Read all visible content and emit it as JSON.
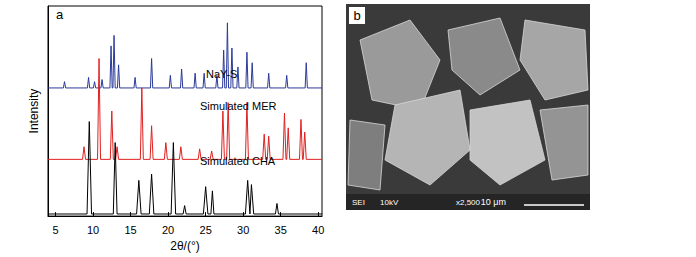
{
  "chart_data": {
    "type": "line",
    "title": "a",
    "xlabel": "2θ/(°)",
    "ylabel": "Intensity",
    "xlim": [
      4,
      40.5
    ],
    "xticks": [
      5,
      10,
      15,
      20,
      25,
      30,
      35,
      40
    ],
    "ylim": [
      0,
      100
    ],
    "tick_labels": "x",
    "grid": false,
    "series": [
      {
        "name": "NaY-S",
        "color": "#2b3a9a",
        "x": [
          4,
          6.05,
          6.2,
          6.35,
          9.25,
          9.4,
          9.55,
          10.05,
          10.2,
          10.35,
          11.05,
          11.2,
          11.35,
          12.25,
          12.4,
          12.55,
          12.65,
          12.8,
          12.95,
          13.25,
          13.4,
          13.55,
          15.45,
          15.6,
          15.75,
          17.65,
          17.8,
          17.95,
          20.15,
          20.3,
          20.45,
          21.65,
          21.8,
          21.95,
          23.45,
          23.6,
          23.75,
          24.65,
          24.8,
          24.95,
          26.35,
          26.5,
          26.65,
          27.25,
          27.4,
          27.55,
          27.75,
          27.9,
          28.05,
          28.35,
          28.5,
          28.65,
          29.15,
          29.3,
          29.45,
          30.35,
          30.5,
          30.65,
          31.05,
          31.2,
          31.35,
          33.25,
          33.4,
          33.55,
          35.65,
          35.8,
          35.95,
          38.25,
          38.4,
          38.55,
          40.5
        ],
        "values": [
          61,
          61,
          64,
          61,
          61,
          66,
          61,
          61,
          64,
          61,
          61,
          65,
          61,
          61,
          81,
          61,
          61,
          86,
          61,
          61,
          72,
          61,
          61,
          66,
          61,
          61,
          75,
          61,
          61,
          67,
          61,
          61,
          70,
          61,
          61,
          68,
          61,
          61,
          68,
          61,
          61,
          67,
          61,
          61,
          79,
          61,
          61,
          92,
          61,
          61,
          80,
          61,
          61,
          71,
          61,
          61,
          78,
          61,
          61,
          73,
          61,
          61,
          68,
          61,
          61,
          67,
          61,
          61,
          73,
          61,
          61
        ]
      },
      {
        "name": "Simulated MER",
        "color": "#e02020",
        "x": [
          4,
          8.6,
          8.8,
          9.0,
          10.6,
          10.8,
          11.0,
          12.3,
          12.5,
          12.7,
          13.0,
          13.2,
          13.4,
          16.3,
          16.5,
          16.7,
          17.6,
          17.8,
          18.0,
          19.5,
          19.7,
          19.9,
          21.5,
          21.7,
          21.9,
          24.0,
          24.2,
          24.4,
          25.6,
          25.8,
          26.0,
          27.1,
          27.3,
          27.5,
          27.8,
          28.0,
          28.2,
          30.3,
          30.5,
          30.7,
          32.6,
          32.8,
          33.0,
          33.2,
          33.4,
          33.6,
          35.3,
          35.5,
          35.7,
          35.8,
          36.0,
          36.2,
          37.5,
          37.7,
          37.9,
          38.0,
          38.2,
          38.4,
          40.5
        ],
        "values": [
          27,
          27,
          33,
          27,
          27,
          75,
          27,
          27,
          50,
          27,
          27,
          33,
          27,
          27,
          61,
          27,
          27,
          43,
          27,
          27,
          35,
          27,
          27,
          33,
          27,
          27,
          32,
          27,
          27,
          31,
          27,
          27,
          50,
          27,
          27,
          54,
          27,
          27,
          54,
          27,
          27,
          39,
          27,
          27,
          38,
          27,
          27,
          49,
          27,
          27,
          42,
          27,
          27,
          46,
          27,
          27,
          40,
          27,
          27
        ]
      },
      {
        "name": "Simulated CHA",
        "color": "#000000",
        "x": [
          4,
          9.2,
          9.5,
          9.8,
          12.7,
          12.95,
          13.2,
          15.8,
          16.1,
          16.4,
          17.5,
          17.8,
          18.1,
          20.4,
          20.7,
          21,
          22,
          22.2,
          22.4,
          24.7,
          25,
          25.3,
          25.7,
          25.9,
          26.1,
          30.3,
          30.6,
          30.9,
          31.1,
          31.4,
          34.3,
          34.5,
          34.7,
          40.5
        ],
        "values": [
          1,
          1,
          45,
          1,
          1,
          35,
          1,
          1,
          17,
          1,
          1,
          20,
          1,
          1,
          35,
          1,
          1,
          5,
          1,
          1,
          14,
          1,
          1,
          12,
          1,
          1,
          17,
          1,
          15,
          1,
          1,
          6,
          1,
          1
        ]
      }
    ]
  },
  "image_panel": {
    "label": "b",
    "info": [
      "SEI",
      "10kV",
      "x2,500"
    ],
    "scale_bar": "10 μm"
  }
}
